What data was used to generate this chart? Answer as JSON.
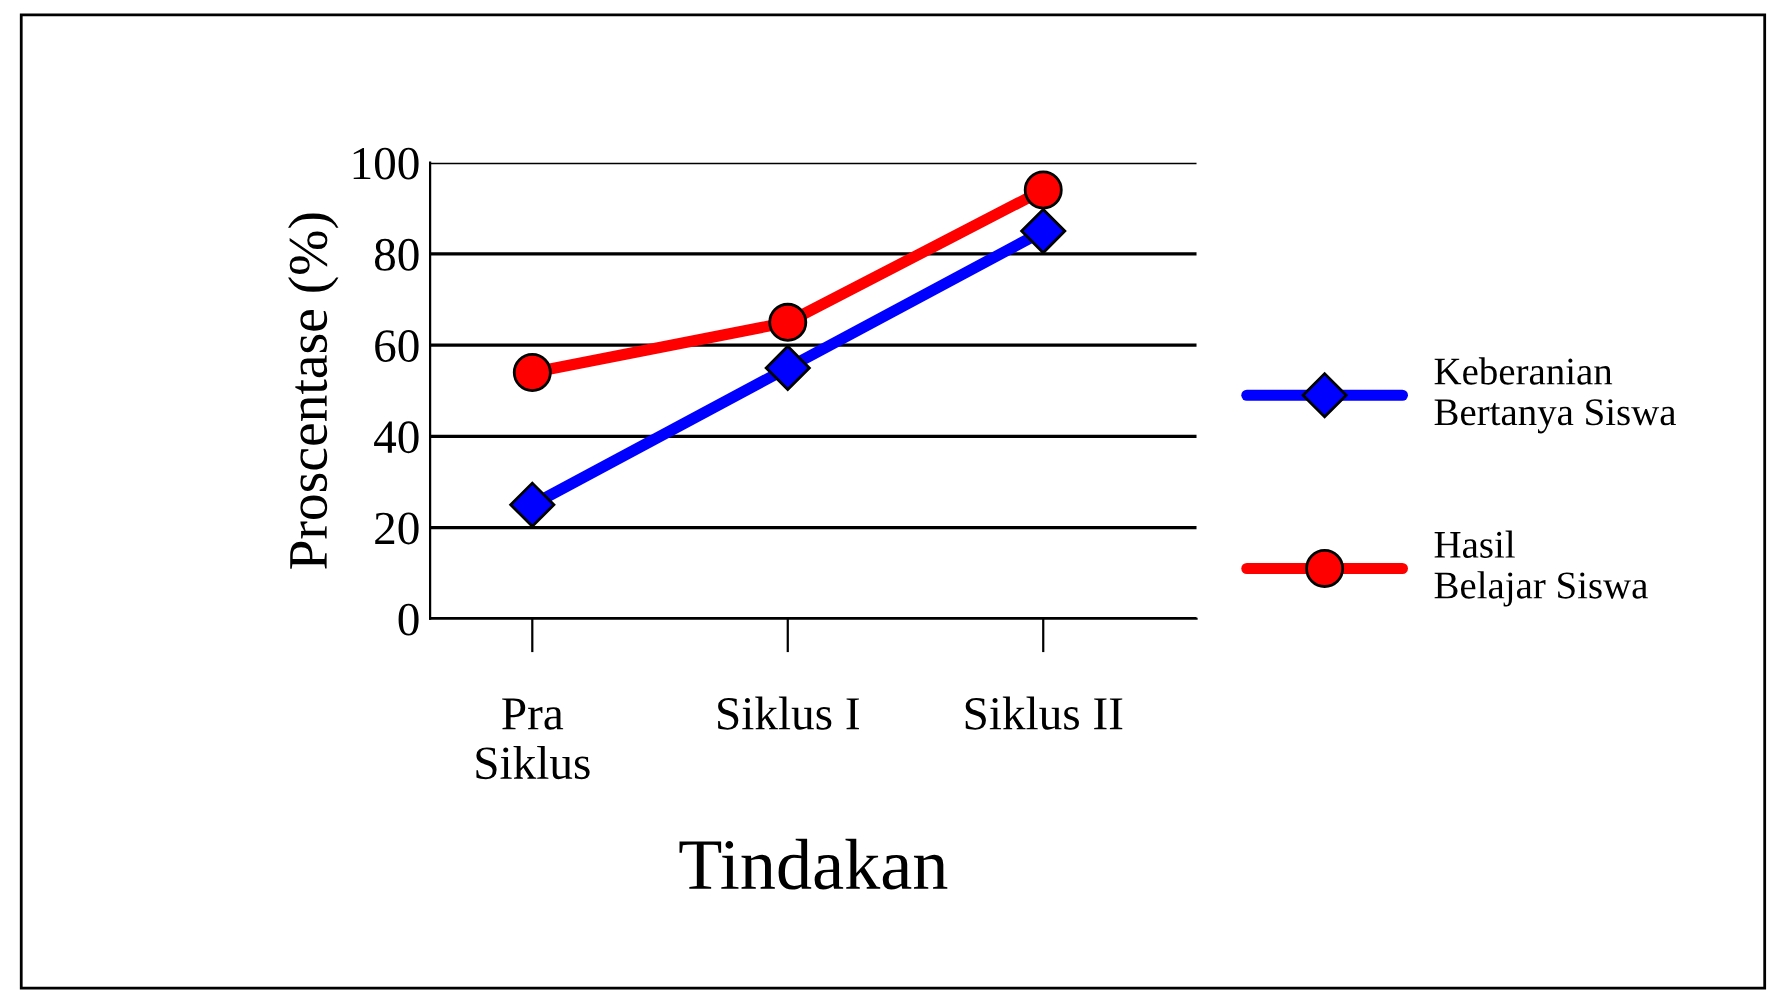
{
  "chart_data": {
    "type": "line",
    "xlabel": "Tindakan",
    "ylabel": "Proscentase (%)",
    "categories": [
      "Pra\nSiklus",
      "Siklus I",
      "Siklus II"
    ],
    "series": [
      {
        "name": "Keberanian\nBertanya Siswa",
        "color": "#0000ff",
        "marker": "diamond",
        "values": [
          25,
          55,
          85
        ]
      },
      {
        "name": "Hasil\nBelajar Siswa",
        "color": "#ff0000",
        "marker": "circle",
        "values": [
          54,
          65,
          94
        ]
      }
    ],
    "ylim": [
      0,
      100
    ],
    "yticks": [
      0,
      20,
      40,
      60,
      80,
      100
    ],
    "grid": "y",
    "legend": "right",
    "line_style": "solid"
  }
}
